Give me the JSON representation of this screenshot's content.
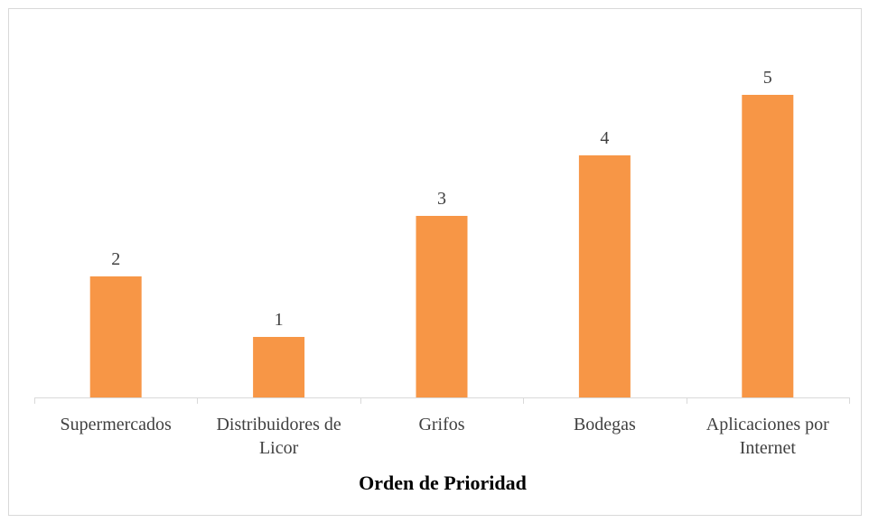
{
  "chart_data": {
    "type": "bar",
    "x_label": "Orden de Prioridad",
    "categories": [
      "Supermercados",
      "Distribuidores de Licor",
      "Grifos",
      "Bodegas",
      "Aplicaciones por Internet"
    ],
    "values": [
      2,
      1,
      3,
      4,
      5
    ],
    "color": "#f79646",
    "ylim": [
      0,
      5
    ]
  }
}
